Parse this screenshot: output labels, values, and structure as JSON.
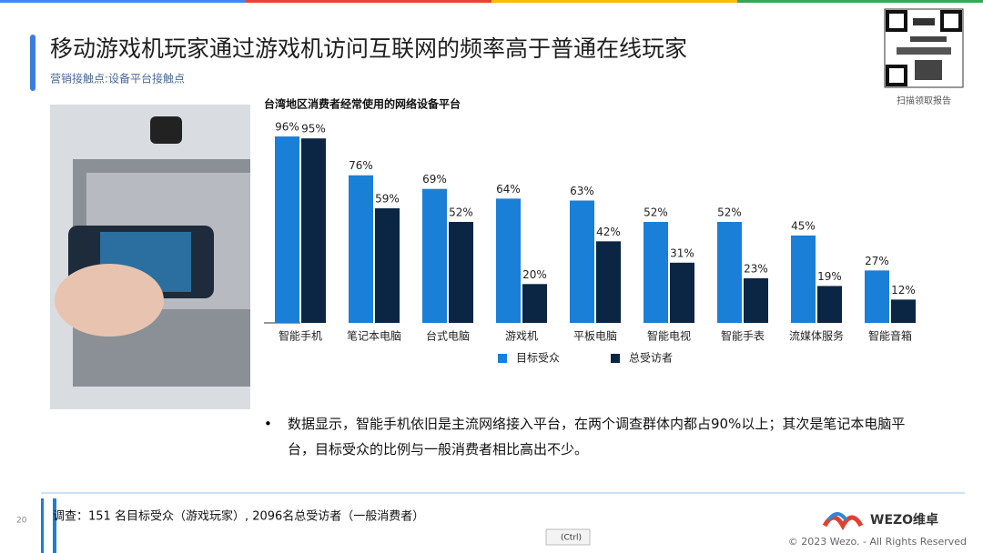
{
  "header": {
    "title": "移动游戏机玩家通过游戏机访问互联网的频率高于普通在线玩家",
    "subtitle": "营销接触点:设备平台接触点",
    "qr_caption": "扫描领取报告"
  },
  "chart_data": {
    "type": "bar",
    "title": "台湾地区消费者经常使用的网络设备平台",
    "categories": [
      "智能手机",
      "笔记本电脑",
      "台式电脑",
      "游戏机",
      "平板电脑",
      "智能电视",
      "智能手表",
      "流媒体服务",
      "智能音箱"
    ],
    "series": [
      {
        "name": "目标受众",
        "color": "#1a7fd6",
        "values": [
          96,
          76,
          69,
          64,
          63,
          52,
          52,
          45,
          27
        ],
        "value_labels": [
          "96%",
          "76%",
          "69%",
          "64%",
          "63%",
          "52%",
          "52%",
          "45%",
          "27%"
        ]
      },
      {
        "name": "总受访者",
        "color": "#0b2545",
        "values": [
          95,
          59,
          52,
          20,
          42,
          31,
          23,
          19,
          12
        ],
        "value_labels": [
          "95%",
          "59%",
          "52%",
          "20%",
          "42%",
          "31%",
          "23%",
          "19%",
          "12%"
        ]
      }
    ],
    "ylim": [
      0,
      100
    ],
    "legend": "bottom"
  },
  "bullet": "数据显示，智能手机依旧是主流网络接入平台，在两个调查群体内都占90%以上；其次是笔记本电脑平台，目标受众的比例与一般消费者相比高出不少。",
  "footer": {
    "page": "20",
    "note": "调查：151 名目标受众（游戏玩家）, 2096名总受访者（一般消费者）",
    "paste_button": "(Ctrl)",
    "logo": "WEZO维卓",
    "copyright": "© 2023 Wezo. - All Rights Reserved"
  }
}
